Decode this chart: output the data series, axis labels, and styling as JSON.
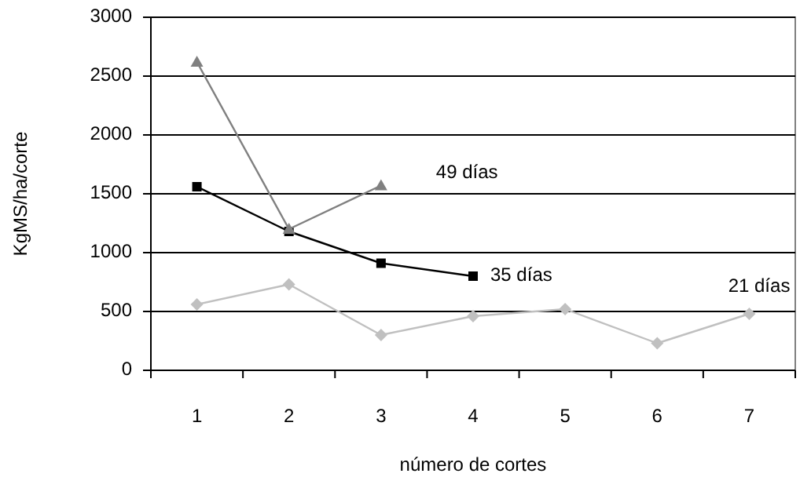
{
  "chart_data": {
    "type": "line",
    "xlabel": "número de cortes",
    "ylabel": "KgMS/ha/corte",
    "categories": [
      "1",
      "2",
      "3",
      "4",
      "5",
      "6",
      "7"
    ],
    "ylim": [
      0,
      3000
    ],
    "yticks": [
      0,
      500,
      1000,
      1500,
      2000,
      2500,
      3000
    ],
    "grid": "y",
    "series": [
      {
        "name": "49 días",
        "color": "#808080",
        "marker": "triangle",
        "values": [
          2620,
          1200,
          1570,
          null,
          null,
          null,
          null
        ]
      },
      {
        "name": "35 días",
        "color": "#000000",
        "marker": "square",
        "values": [
          1560,
          1180,
          910,
          800,
          null,
          null,
          null
        ]
      },
      {
        "name": "21 días",
        "color": "#c0c0c0",
        "marker": "diamond",
        "values": [
          560,
          730,
          300,
          460,
          520,
          230,
          480
        ]
      }
    ]
  }
}
